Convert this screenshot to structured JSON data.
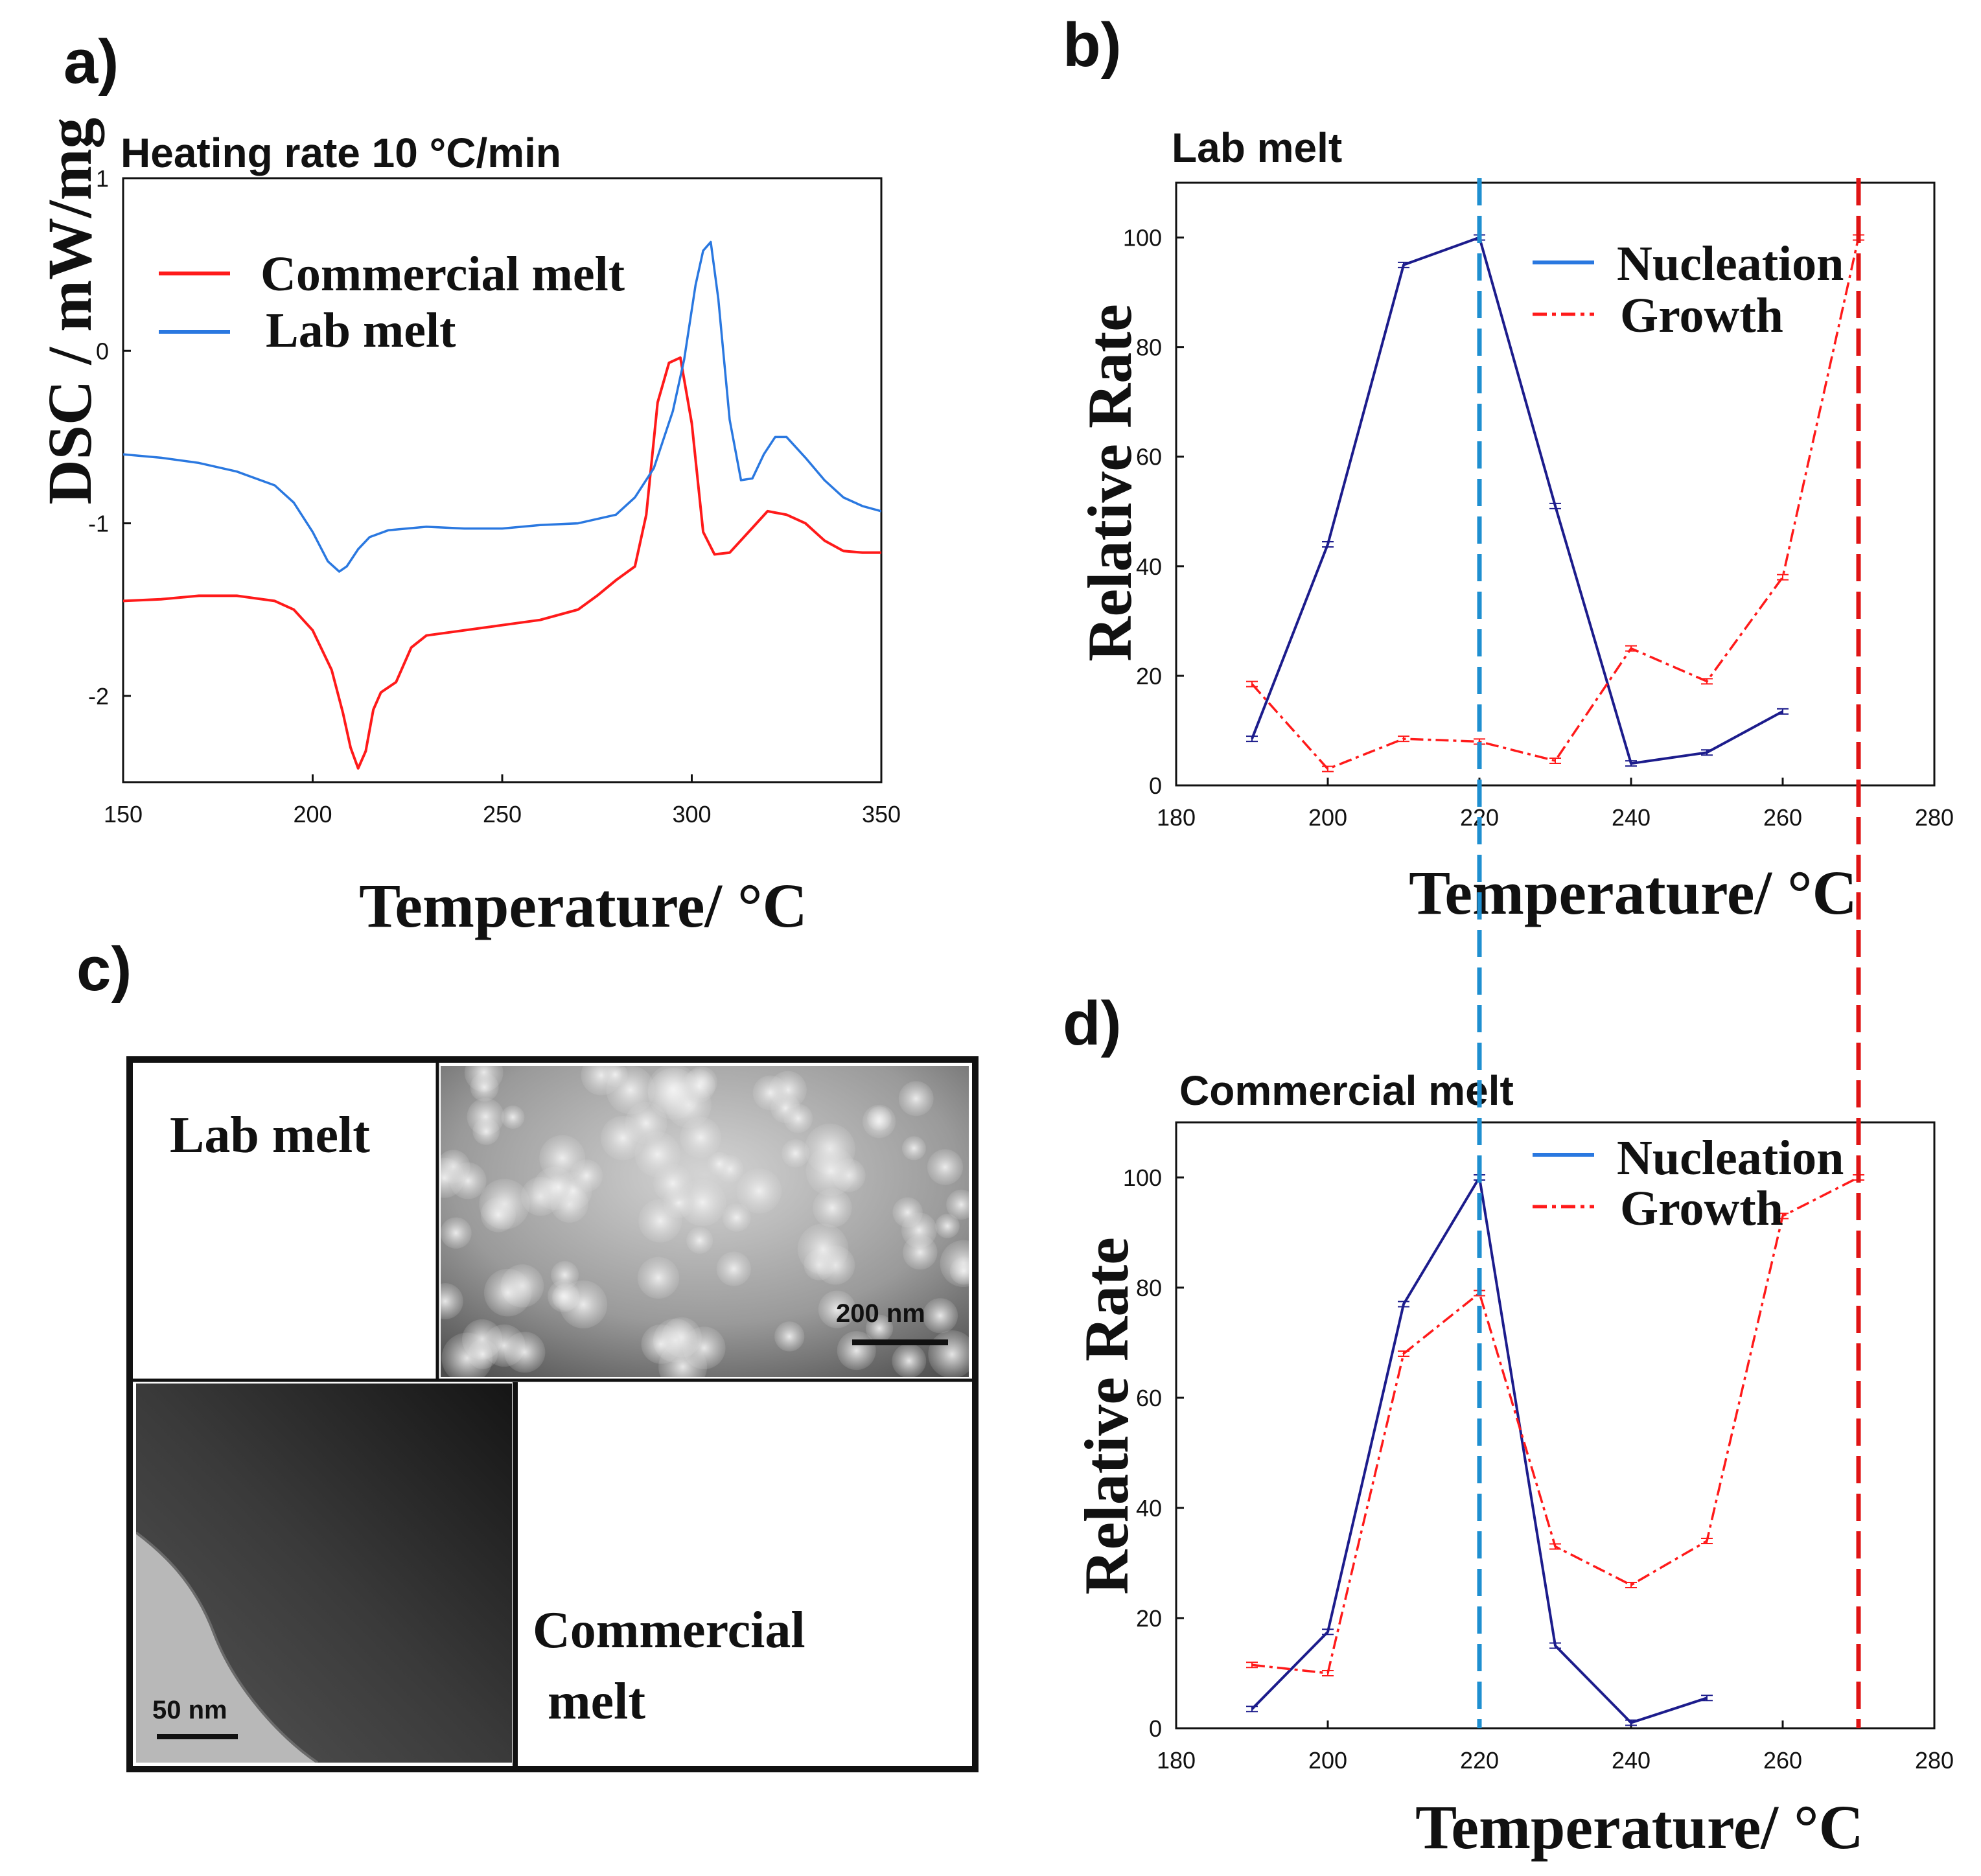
{
  "colors": {
    "red": "#ff1a1a",
    "blue": "#2a78e0",
    "navy": "#1c1c8c",
    "dash_blue": "#1f8fd0",
    "dash_red": "#e01414"
  },
  "panel_a": {
    "letter": "a)"
  },
  "panel_b": {
    "letter": "b)"
  },
  "panel_c": {
    "letter": "c)",
    "lab_label": "Lab melt",
    "commercial_label_line1": "Commercial",
    "commercial_label_line2": "melt",
    "scale_top": "200 nm",
    "scale_bottom": "50 nm"
  },
  "panel_d": {
    "letter": "d)"
  },
  "chart_data": [
    {
      "type": "line",
      "title": "Heating rate 10 °C/min",
      "xlabel": "Temperature/ °C",
      "ylabel": "DSC / mW/mg",
      "xlim": [
        150,
        350
      ],
      "ylim": [
        -2.5,
        1
      ],
      "xticks": [
        150,
        200,
        250,
        300,
        350
      ],
      "yticks": [
        1,
        0,
        -1,
        -2
      ],
      "legend": [
        "Commercial melt",
        "Lab melt"
      ],
      "series": [
        {
          "name": "Commercial melt",
          "x": [
            150,
            160,
            170,
            180,
            190,
            195,
            200,
            205,
            208,
            210,
            212,
            214,
            216,
            218,
            222,
            226,
            230,
            240,
            250,
            260,
            270,
            275,
            280,
            285,
            288,
            291,
            294,
            297,
            300,
            303,
            306,
            310,
            315,
            320,
            325,
            330,
            335,
            340,
            345,
            350
          ],
          "y": [
            -1.45,
            -1.44,
            -1.42,
            -1.42,
            -1.45,
            -1.5,
            -1.62,
            -1.85,
            -2.1,
            -2.3,
            -2.42,
            -2.32,
            -2.08,
            -1.98,
            -1.92,
            -1.72,
            -1.65,
            -1.62,
            -1.59,
            -1.56,
            -1.5,
            -1.42,
            -1.33,
            -1.25,
            -0.95,
            -0.3,
            -0.07,
            -0.04,
            -0.42,
            -1.05,
            -1.18,
            -1.17,
            -1.05,
            -0.93,
            -0.95,
            -1.0,
            -1.1,
            -1.16,
            -1.17,
            -1.17
          ]
        },
        {
          "name": "Lab melt",
          "x": [
            150,
            160,
            170,
            180,
            190,
            195,
            200,
            204,
            207,
            209,
            212,
            215,
            220,
            230,
            240,
            250,
            260,
            270,
            280,
            285,
            290,
            295,
            298,
            301,
            303,
            305,
            307,
            310,
            313,
            316,
            319,
            322,
            325,
            330,
            335,
            340,
            345,
            350
          ],
          "y": [
            -0.6,
            -0.62,
            -0.65,
            -0.7,
            -0.78,
            -0.88,
            -1.05,
            -1.22,
            -1.28,
            -1.25,
            -1.15,
            -1.08,
            -1.04,
            -1.02,
            -1.03,
            -1.03,
            -1.01,
            -1.0,
            -0.95,
            -0.85,
            -0.68,
            -0.35,
            -0.05,
            0.38,
            0.58,
            0.63,
            0.3,
            -0.4,
            -0.75,
            -0.74,
            -0.6,
            -0.5,
            -0.5,
            -0.62,
            -0.75,
            -0.85,
            -0.9,
            -0.93
          ]
        }
      ]
    },
    {
      "type": "line",
      "title": "Lab melt",
      "xlabel": "Temperature/ °C",
      "ylabel": "Relative Rate",
      "xlim": [
        180,
        280
      ],
      "ylim": [
        0,
        110
      ],
      "xticks": [
        180,
        200,
        220,
        240,
        260,
        280
      ],
      "yticks": [
        0,
        20,
        40,
        60,
        80,
        100
      ],
      "legend": [
        "Nucleation",
        "Growth"
      ],
      "vlines": [
        220,
        270
      ],
      "series": [
        {
          "name": "Nucleation",
          "x": [
            190,
            200,
            210,
            220,
            230,
            240,
            250,
            260
          ],
          "y": [
            8.5,
            44,
            95,
            100,
            51,
            4,
            6,
            13.5
          ]
        },
        {
          "name": "Growth",
          "x": [
            190,
            200,
            210,
            220,
            230,
            240,
            250,
            260,
            270
          ],
          "y": [
            18.5,
            3,
            8.5,
            8,
            4.5,
            25,
            19,
            38,
            100
          ]
        }
      ]
    },
    {
      "type": "line",
      "title": "Commercial melt",
      "xlabel": "Temperature/ °C",
      "ylabel": "Relative Rate",
      "xlim": [
        180,
        280
      ],
      "ylim": [
        0,
        110
      ],
      "xticks": [
        180,
        200,
        220,
        240,
        260,
        280
      ],
      "yticks": [
        0,
        20,
        40,
        60,
        80,
        100
      ],
      "legend": [
        "Nucleation",
        "Growth"
      ],
      "vlines": [
        220,
        270
      ],
      "series": [
        {
          "name": "Nucleation",
          "x": [
            190,
            200,
            210,
            220,
            230,
            240,
            250
          ],
          "y": [
            3.5,
            17.5,
            77,
            100,
            15,
            1,
            5.5
          ]
        },
        {
          "name": "Growth",
          "x": [
            190,
            200,
            210,
            220,
            230,
            240,
            250,
            260,
            270
          ],
          "y": [
            11.5,
            10,
            68,
            79,
            33,
            26,
            34,
            93,
            100
          ]
        }
      ]
    }
  ]
}
